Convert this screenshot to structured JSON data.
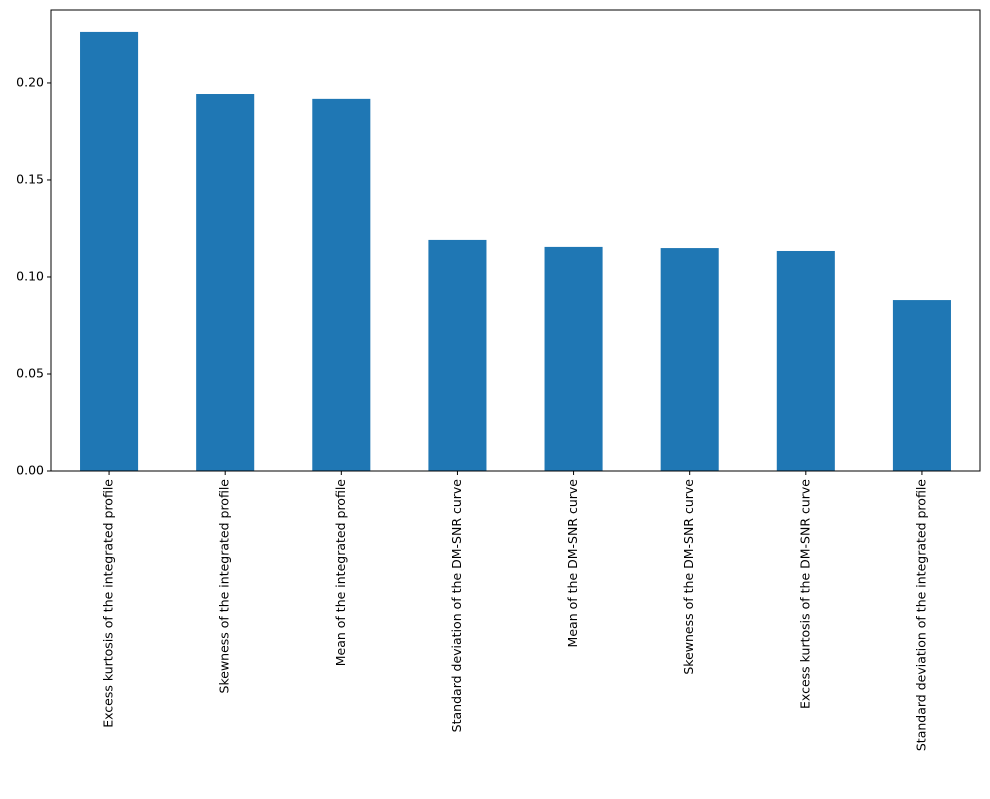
{
  "chart_data": {
    "type": "bar",
    "categories": [
      "Excess kurtosis of the integrated profile",
      "Skewness of the integrated profile",
      "Mean of the integrated profile",
      "Standard deviation of the DM-SNR curve",
      "Mean of the DM-SNR curve",
      "Skewness of the DM-SNR curve",
      "Excess kurtosis of the DM-SNR curve",
      "Standard deviation of the integrated profile"
    ],
    "values": [
      0.2263,
      0.1943,
      0.1918,
      0.1191,
      0.1155,
      0.1149,
      0.1134,
      0.0881
    ],
    "color": "#1f77b4",
    "ylim": [
      0,
      0.2376
    ],
    "yticks": [
      {
        "value": 0,
        "label": "0.00"
      },
      {
        "value": 0.05,
        "label": "0.05"
      },
      {
        "value": 0.1,
        "label": "0.10"
      },
      {
        "value": 0.15,
        "label": "0.15"
      },
      {
        "value": 0.2,
        "label": "0.20"
      }
    ],
    "grid": false
  }
}
